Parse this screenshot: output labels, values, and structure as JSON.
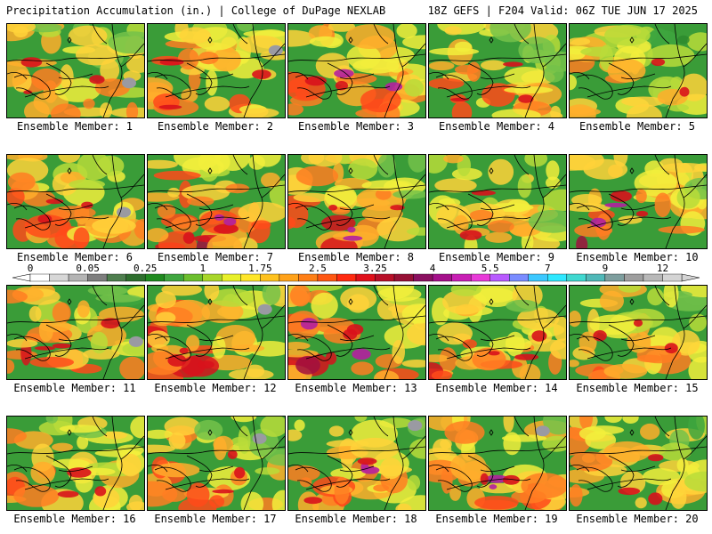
{
  "header": {
    "title": "Precipitation Accumulation (in.) | College of DuPage NEXLAB",
    "run_info": "18Z GEFS | F204 Valid: 06Z TUE JUN 17 2025"
  },
  "members": [
    {
      "label": "Ensemble Member: 1",
      "wetness": 0.45
    },
    {
      "label": "Ensemble Member: 2",
      "wetness": 0.55
    },
    {
      "label": "Ensemble Member: 3",
      "wetness": 0.65
    },
    {
      "label": "Ensemble Member: 4",
      "wetness": 0.5
    },
    {
      "label": "Ensemble Member: 5",
      "wetness": 0.25
    },
    {
      "label": "Ensemble Member: 6",
      "wetness": 0.55
    },
    {
      "label": "Ensemble Member: 7",
      "wetness": 0.7
    },
    {
      "label": "Ensemble Member: 8",
      "wetness": 0.6
    },
    {
      "label": "Ensemble Member: 9",
      "wetness": 0.35
    },
    {
      "label": "Ensemble Member: 10",
      "wetness": 0.6
    },
    {
      "label": "Ensemble Member: 11",
      "wetness": 0.5
    },
    {
      "label": "Ensemble Member: 12",
      "wetness": 0.55
    },
    {
      "label": "Ensemble Member: 13",
      "wetness": 0.6
    },
    {
      "label": "Ensemble Member: 14",
      "wetness": 0.5
    },
    {
      "label": "Ensemble Member: 15",
      "wetness": 0.5
    },
    {
      "label": "Ensemble Member: 16",
      "wetness": 0.45
    },
    {
      "label": "Ensemble Member: 17",
      "wetness": 0.5
    },
    {
      "label": "Ensemble Member: 18",
      "wetness": 0.6
    },
    {
      "label": "Ensemble Member: 19",
      "wetness": 0.6
    },
    {
      "label": "Ensemble Member: 20",
      "wetness": 0.5
    }
  ],
  "legend": {
    "labels": [
      "0",
      "0.05",
      "0.25",
      "1",
      "1.75",
      "2.5",
      "3.25",
      "4",
      "5.5",
      "7",
      "9",
      "12"
    ],
    "colors": [
      "#ffffff",
      "#d7d7d7",
      "#b4b4b4",
      "#7e7e7e",
      "#4e7e4e",
      "#2e6e2e",
      "#1f8a1f",
      "#3fa63f",
      "#6cbf2e",
      "#a8d62a",
      "#e8f02a",
      "#ffe62a",
      "#ffc21f",
      "#ffa21a",
      "#ff7f16",
      "#ff5712",
      "#ff2a10",
      "#e0101a",
      "#b80f28",
      "#961035",
      "#8a1060",
      "#a4108a",
      "#c81fb4",
      "#e83ad8",
      "#b85aff",
      "#7a8cff",
      "#3cc8ff",
      "#2fe8ff",
      "#40d8d0",
      "#50b8b8",
      "#7e9e9e",
      "#9e9e9e",
      "#b8b8b8",
      "#d4d4d4"
    ]
  }
}
